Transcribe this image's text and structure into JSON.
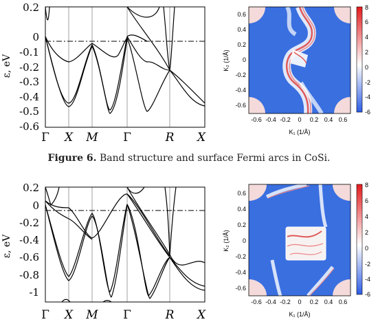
{
  "caption": {
    "label": "Figure 6.",
    "text": " Band structure and surface Fermi arcs in CoSi."
  },
  "band_panels": [
    {
      "ylabel": "ε, eV",
      "yticks": [
        "0.2",
        "0",
        "-0.1",
        "-0.2",
        "-0.3",
        "-0.4",
        "-0.5",
        "-0.6"
      ],
      "kpoints": [
        "Γ",
        "X",
        "M",
        "Γ",
        "R",
        "X"
      ]
    },
    {
      "ylabel": "ε, eV",
      "yticks": [
        "0.2",
        "0",
        "-0.2",
        "-0.4",
        "-0.6",
        "-0.8",
        "-1"
      ],
      "kpoints": [
        "Γ",
        "X",
        "M",
        "Γ",
        "R",
        "X"
      ]
    }
  ],
  "fermi_panels": [
    {
      "xlabel": "K₁ (1/Å)",
      "ylabel": "K₂ (1/Å)",
      "xticks": [
        "-0.6",
        "-0.4",
        "-0.2",
        "0",
        "0.2",
        "0.4",
        "0.6"
      ],
      "yticks": [
        "0.6",
        "0.4",
        "0.2",
        "0",
        "-0.2",
        "-0.4",
        "-0.6"
      ],
      "cbar_ticks": [
        "8",
        "6",
        "4",
        "2",
        "0",
        "-2",
        "-4",
        "-6"
      ]
    },
    {
      "xlabel": "K₁ (1/Å)",
      "ylabel": "K₂ (1/Å)",
      "xticks": [
        "-0.6",
        "-0.4",
        "-0.2",
        "0",
        "0.2",
        "0.4",
        "0.6"
      ],
      "yticks": [
        "0.6",
        "0.4",
        "0.2",
        "0",
        "-0.2",
        "-0.4",
        "-0.6"
      ],
      "cbar_ticks": [
        "8",
        "6",
        "4",
        "2",
        "0",
        "-2",
        "-4",
        "-6"
      ]
    }
  ],
  "colors": {
    "map_blue": "#3a6fe0",
    "arc_red": "#e05a5a",
    "cbar_top": "#e41a1c",
    "cbar_mid": "#ffffff",
    "cbar_bottom": "#2b5ce6"
  }
}
